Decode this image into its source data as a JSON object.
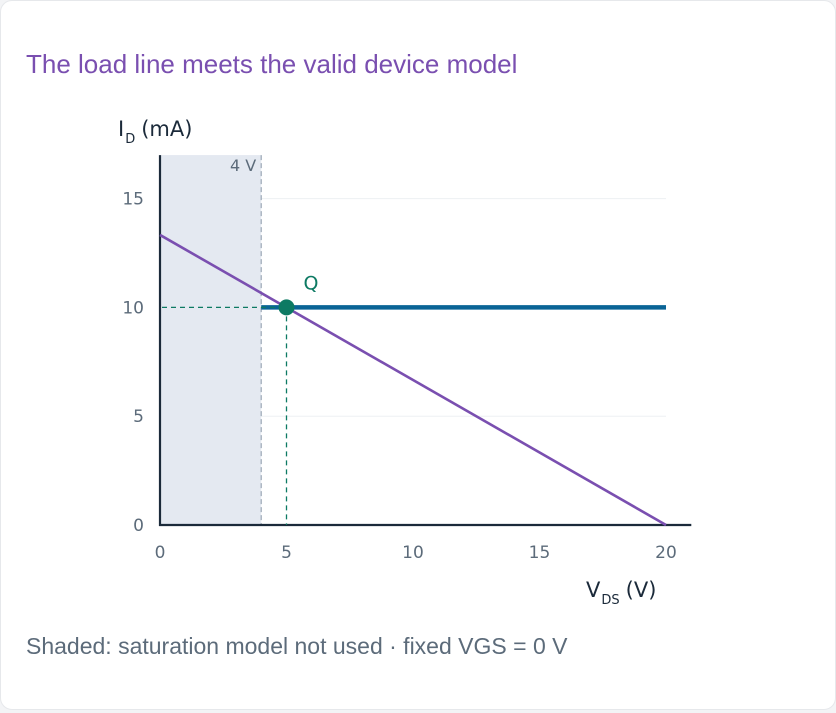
{
  "title": "The load line meets the valid device model",
  "caption": "Shaded: saturation model not used · fixed VGS = 0 V",
  "colors": {
    "title": "#7a4fb0",
    "load_line": "#7a4fb0",
    "device_curve": "#0a6496",
    "q_point": "#0d7a63",
    "shade": "#e4e9f1",
    "axis": "#1b2a3a"
  },
  "chart_data": {
    "type": "line",
    "x_axis": {
      "label_main": "V",
      "label_sub": "DS",
      "label_unit": "(V)",
      "min": 0,
      "max": 21,
      "ticks": [
        0,
        5,
        10,
        15,
        20
      ]
    },
    "y_axis": {
      "label_main": "I",
      "label_sub": "D",
      "label_unit": "(mA)",
      "min": 0,
      "max": 17,
      "ticks": [
        0,
        5,
        10,
        15
      ]
    },
    "grid": "horizontal",
    "shaded_region": {
      "x_from": 0,
      "x_to": 4,
      "label": "4 V"
    },
    "series": [
      {
        "id": "load_line",
        "points": [
          [
            0,
            13.33
          ],
          [
            20,
            0
          ]
        ]
      },
      {
        "id": "device_curve",
        "points": [
          [
            4,
            10
          ],
          [
            20,
            10
          ]
        ]
      }
    ],
    "q_point": {
      "label": "Q",
      "x": 5,
      "y": 10
    }
  }
}
